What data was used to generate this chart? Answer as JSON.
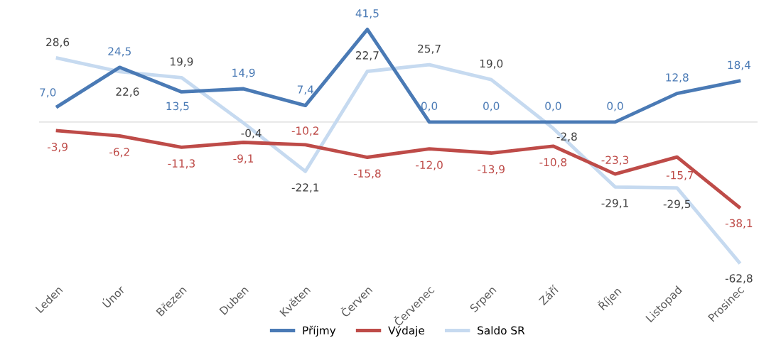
{
  "chart_data": {
    "type": "line",
    "categories": [
      "Leden",
      "Únor",
      "Březen",
      "Duben",
      "Květen",
      "Červen",
      "Červenec",
      "Srpen",
      "Září",
      "Říjen",
      "Listopad",
      "Prosinec"
    ],
    "series": [
      {
        "name": "Příjmy",
        "color": "#4a7ab5",
        "values": [
          7.0,
          24.5,
          13.5,
          14.9,
          7.4,
          41.5,
          0.0,
          0.0,
          0.0,
          0.0,
          12.8,
          18.4
        ],
        "value_labels": [
          "7,0",
          "24,5",
          "13,5",
          "14,9",
          "7,4",
          "41,5",
          "0,0",
          "0,0",
          "0,0",
          "0,0",
          "12,8",
          "18,4"
        ]
      },
      {
        "name": "Výdaje",
        "color": "#be4b48",
        "values": [
          -3.9,
          -6.2,
          -11.3,
          -9.1,
          -10.2,
          -15.8,
          -12.0,
          -13.9,
          -10.8,
          -23.3,
          -15.7,
          -38.1
        ],
        "value_labels": [
          "-3,9",
          "-6,2",
          "-11,3",
          "-9,1",
          "-10,2",
          "-15,8",
          "-12,0",
          "-13,9",
          "-10,8",
          "-23,3",
          "-15,7",
          "-38,1"
        ]
      },
      {
        "name": "Saldo SR",
        "color": "#c6daf0",
        "values": [
          28.6,
          22.6,
          19.9,
          -0.4,
          -22.1,
          22.7,
          25.7,
          19.0,
          -2.8,
          -29.1,
          -29.5,
          -62.8
        ],
        "value_labels": [
          "28,6",
          "22,6",
          "19,9",
          "-0,4",
          "-22,1",
          "22,7",
          "25,7",
          "19,0",
          "-2,8",
          "-29,1",
          "-29,5",
          "-62,8"
        ]
      }
    ],
    "data_labels": true,
    "grid": false,
    "legend": "bottom",
    "marker": "none",
    "line_style": "solid"
  }
}
